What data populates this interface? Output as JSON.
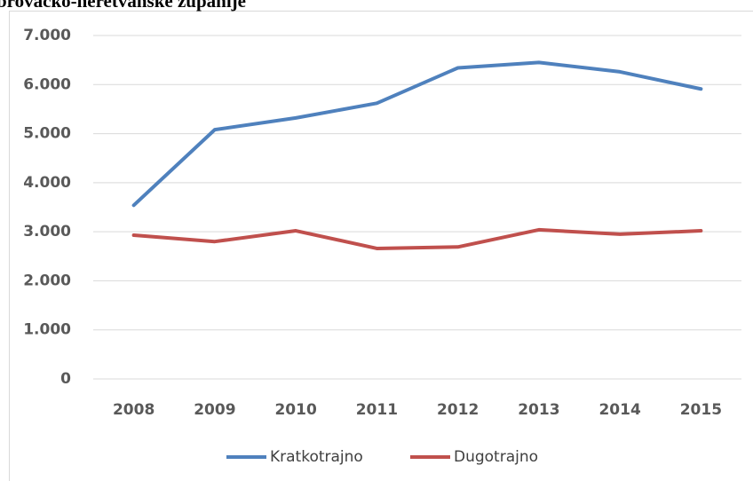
{
  "chart_data": {
    "type": "line",
    "title": "brovačko-neretvanske županije",
    "categories": [
      "2008",
      "2009",
      "2010",
      "2011",
      "2012",
      "2013",
      "2014",
      "2015"
    ],
    "series": [
      {
        "name": "Kratkotrajno",
        "color": "#4f81bd",
        "values": [
          3540,
          5080,
          5320,
          5620,
          6340,
          6450,
          6260,
          5910
        ]
      },
      {
        "name": "Dugotrajno",
        "color": "#c0504d",
        "values": [
          2930,
          2800,
          3020,
          2660,
          2690,
          3040,
          2950,
          3020
        ]
      }
    ],
    "ylim": [
      0,
      7000
    ],
    "yticks": [
      0,
      {
        "value": 1000,
        "label": "1.000"
      },
      {
        "value": 2000,
        "label": "2.000"
      },
      {
        "value": 3000,
        "label": "3.000"
      },
      {
        "value": 4000,
        "label": "4.000"
      },
      {
        "value": 5000,
        "label": "5.000"
      },
      {
        "value": 6000,
        "label": "6.000"
      },
      {
        "value": 7000,
        "label": "7.000"
      }
    ],
    "grid": true,
    "legend": "bottom"
  }
}
